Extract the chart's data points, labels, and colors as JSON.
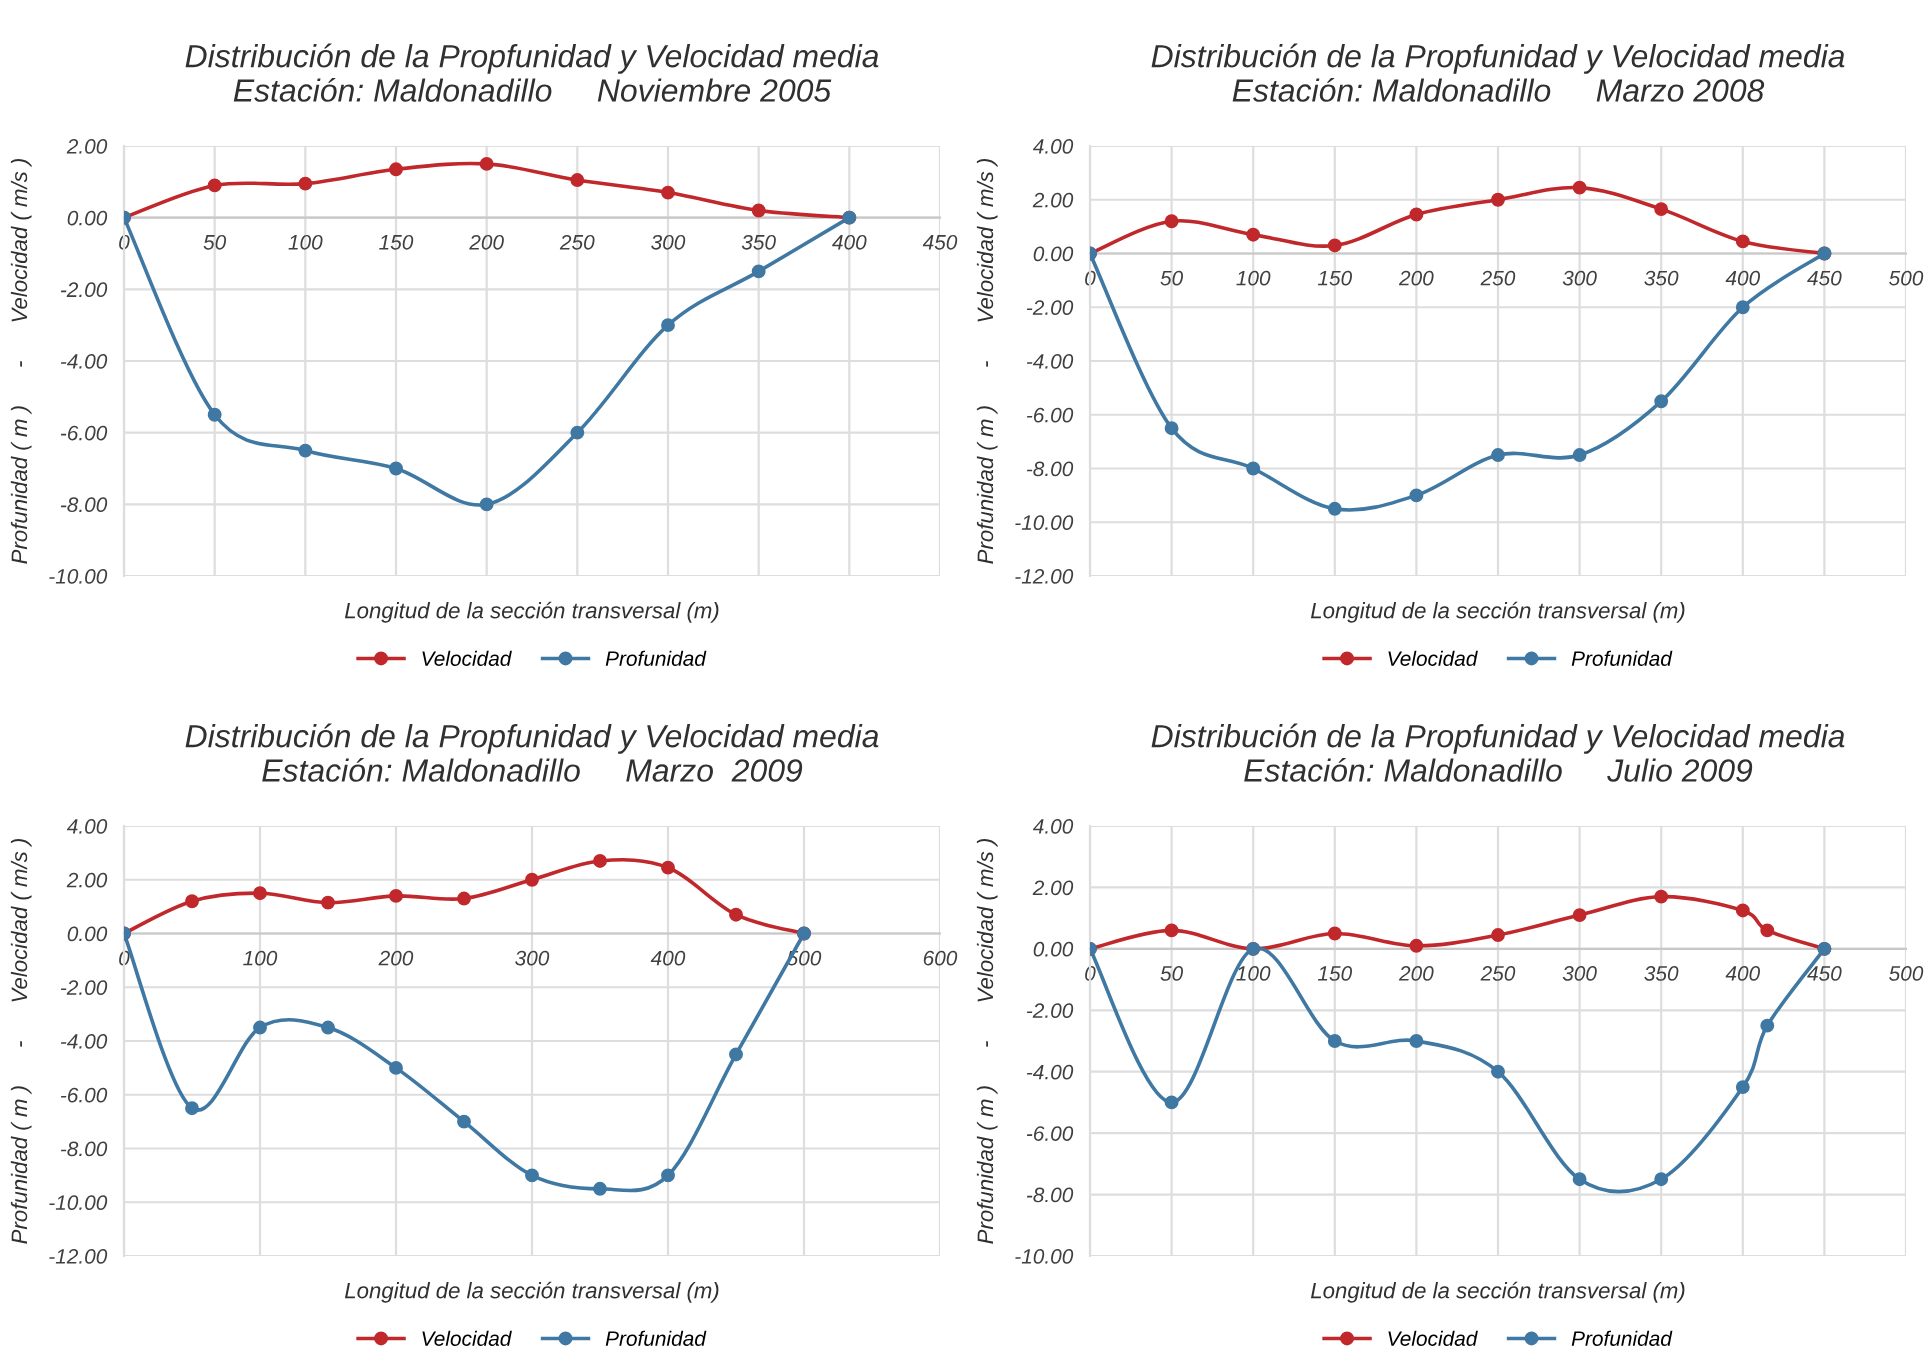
{
  "chart_data": [
    {
      "type": "line",
      "title": "Distribución de la Propfunidad y Velocidad media\nEstación: Maldonadillo     Noviembre 2005",
      "xlabel": "Longitud de la sección transversal (m)",
      "ylabel": "Profunidad ( m )      -      Velocidad ( m/s )",
      "x": [
        0,
        50,
        100,
        150,
        200,
        250,
        300,
        350,
        400
      ],
      "xlim": [
        0,
        450
      ],
      "xticks": [
        0,
        50,
        100,
        150,
        200,
        250,
        300,
        350,
        400,
        450
      ],
      "ylim": [
        -10,
        2
      ],
      "yticks": [
        {
          "value": -10,
          "label": "-10.00"
        },
        {
          "value": -8,
          "label": "-8.00"
        },
        {
          "value": -6,
          "label": "-6.00"
        },
        {
          "value": -4,
          "label": "-4.00"
        },
        {
          "value": -2,
          "label": "-2.00"
        },
        {
          "value": 0,
          "label": "0.00"
        },
        {
          "value": 2,
          "label": "2.00"
        }
      ],
      "grid": true,
      "legend": "bottom",
      "marker": "circle",
      "series": [
        {
          "name": "Velocidad",
          "color": "#c0282c",
          "values": [
            0,
            0.9,
            0.95,
            1.35,
            1.5,
            1.05,
            0.7,
            0.2,
            0
          ]
        },
        {
          "name": "Profunidad",
          "color": "#3f78a3",
          "values": [
            0,
            -5.5,
            -6.5,
            -7,
            -8,
            -6,
            -3,
            -1.5,
            0
          ]
        }
      ]
    },
    {
      "type": "line",
      "title": "Distribución de la Propfunidad y Velocidad media\nEstación: Maldonadillo     Marzo 2008",
      "xlabel": "Longitud de la sección transversal (m)",
      "ylabel": "Profunidad ( m )      -      Velocidad ( m/s )",
      "x": [
        0,
        50,
        100,
        150,
        200,
        250,
        300,
        350,
        400,
        450
      ],
      "xlim": [
        0,
        500
      ],
      "xticks": [
        0,
        50,
        100,
        150,
        200,
        250,
        300,
        350,
        400,
        450,
        500
      ],
      "ylim": [
        -12,
        4
      ],
      "yticks": [
        {
          "value": -12,
          "label": "-12.00"
        },
        {
          "value": -10,
          "label": "-10.00"
        },
        {
          "value": -8,
          "label": "-8.00"
        },
        {
          "value": -6,
          "label": "-6.00"
        },
        {
          "value": -4,
          "label": "-4.00"
        },
        {
          "value": -2,
          "label": "-2.00"
        },
        {
          "value": 0,
          "label": "0.00"
        },
        {
          "value": 2,
          "label": "2.00"
        },
        {
          "value": 4,
          "label": "4.00"
        }
      ],
      "grid": true,
      "legend": "bottom",
      "marker": "circle",
      "series": [
        {
          "name": "Velocidad",
          "color": "#c0282c",
          "values": [
            0,
            1.2,
            0.7,
            0.3,
            1.45,
            2.0,
            2.45,
            1.65,
            0.45,
            0
          ]
        },
        {
          "name": "Profunidad",
          "color": "#3f78a3",
          "values": [
            0,
            -6.5,
            -8,
            -9.5,
            -9,
            -7.5,
            -7.5,
            -5.5,
            -2,
            0
          ]
        }
      ]
    },
    {
      "type": "line",
      "title": "Distribución de la Propfunidad y Velocidad media\nEstación: Maldonadillo     Marzo  2009",
      "xlabel": "Longitud de la sección transversal (m)",
      "ylabel": "Profunidad ( m )      -      Velocidad ( m/s )",
      "x": [
        0,
        50,
        100,
        150,
        200,
        250,
        300,
        350,
        400,
        450,
        500
      ],
      "xlim": [
        0,
        600
      ],
      "xticks": [
        0,
        100,
        200,
        300,
        400,
        500,
        600
      ],
      "ylim": [
        -12,
        4
      ],
      "yticks": [
        {
          "value": -12,
          "label": "-12.00"
        },
        {
          "value": -10,
          "label": "-10.00"
        },
        {
          "value": -8,
          "label": "-8.00"
        },
        {
          "value": -6,
          "label": "-6.00"
        },
        {
          "value": -4,
          "label": "-4.00"
        },
        {
          "value": -2,
          "label": "-2.00"
        },
        {
          "value": 0,
          "label": "0.00"
        },
        {
          "value": 2,
          "label": "2.00"
        },
        {
          "value": 4,
          "label": "4.00"
        }
      ],
      "grid": true,
      "legend": "bottom",
      "marker": "circle",
      "series": [
        {
          "name": "Velocidad",
          "color": "#c0282c",
          "values": [
            0,
            1.2,
            1.5,
            1.15,
            1.4,
            1.3,
            2.0,
            2.7,
            2.45,
            0.7,
            0
          ]
        },
        {
          "name": "Profunidad",
          "color": "#3f78a3",
          "values": [
            0,
            -6.5,
            -3.5,
            -3.5,
            -5,
            -7,
            -9,
            -9.5,
            -9,
            -4.5,
            0
          ]
        }
      ]
    },
    {
      "type": "line",
      "title": "Distribución de la Propfunidad y Velocidad media\nEstación: Maldonadillo     Julio 2009",
      "xlabel": "Longitud de la sección transversal (m)",
      "ylabel": "Profunidad ( m )      -      Velocidad ( m/s )",
      "x": [
        0,
        50,
        100,
        150,
        200,
        250,
        300,
        350,
        400,
        415,
        450
      ],
      "xlim": [
        0,
        500
      ],
      "xticks": [
        0,
        50,
        100,
        150,
        200,
        250,
        300,
        350,
        400,
        450,
        500
      ],
      "ylim": [
        -10,
        4
      ],
      "yticks": [
        {
          "value": -10,
          "label": "-10.00"
        },
        {
          "value": -8,
          "label": "-8.00"
        },
        {
          "value": -6,
          "label": "-6.00"
        },
        {
          "value": -4,
          "label": "-4.00"
        },
        {
          "value": -2,
          "label": "-2.00"
        },
        {
          "value": 0,
          "label": "0.00"
        },
        {
          "value": 2,
          "label": "2.00"
        },
        {
          "value": 4,
          "label": "4.00"
        }
      ],
      "grid": true,
      "legend": "bottom",
      "marker": "circle",
      "series": [
        {
          "name": "Velocidad",
          "color": "#c0282c",
          "values": [
            0,
            0.6,
            0,
            0.5,
            0.1,
            0.45,
            1.1,
            1.7,
            1.25,
            0.6,
            0
          ]
        },
        {
          "name": "Profunidad",
          "color": "#3f78a3",
          "values": [
            0,
            -5,
            0,
            -3,
            -3,
            -4,
            -7.5,
            -7.5,
            -4.5,
            -2.5,
            0
          ]
        }
      ]
    }
  ]
}
